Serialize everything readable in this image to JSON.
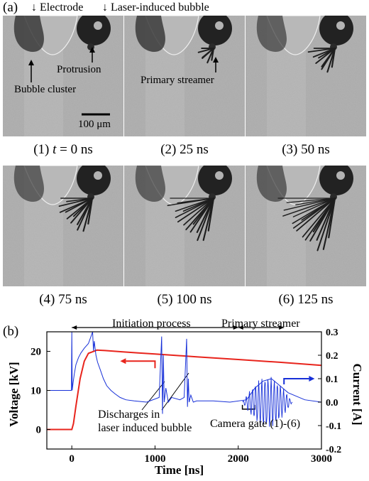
{
  "part_a": {
    "label": "(a)",
    "top_labels": {
      "electrode": "Electrode",
      "bubble": "Laser-induced bubble"
    },
    "annotations": {
      "bubble_cluster": "Bubble cluster",
      "protrusion": "Protrusion",
      "primary_streamer": "Primary streamer",
      "scale_bar": "100 μm"
    },
    "frames": [
      {
        "caption_prefix": "(1) ",
        "caption_var": "t",
        "caption_suffix": " = 0 ns",
        "streamer_level": 0
      },
      {
        "caption": "(2) 25 ns",
        "streamer_level": 1
      },
      {
        "caption": "(3) 50 ns",
        "streamer_level": 2
      },
      {
        "caption": "(4) 75 ns",
        "streamer_level": 3
      },
      {
        "caption": "(5) 100 ns",
        "streamer_level": 4
      },
      {
        "caption": "(6) 125 ns",
        "streamer_level": 5
      }
    ]
  },
  "part_b": {
    "label": "(b)",
    "chart_data": {
      "type": "line",
      "xlabel": "Time [ns]",
      "ylabel_left": "Voltage [kV]",
      "ylabel_right": "Current [A]",
      "xlim": [
        -300,
        3000
      ],
      "ylim_left": [
        -5,
        25
      ],
      "ylim_right": [
        -0.2,
        0.3
      ],
      "xticks": [
        0,
        1000,
        2000,
        3000
      ],
      "yticks_left": [
        0,
        10,
        20
      ],
      "yticks_right": [
        -0.2,
        -0.1,
        0.0,
        0.1,
        0.2,
        0.3
      ],
      "series": [
        {
          "axis": "left",
          "color": "#e8241c",
          "x": [
            -300,
            0,
            20,
            50,
            100,
            150,
            200,
            300,
            400,
            600,
            800,
            1000,
            1500,
            2000,
            2500,
            3000
          ],
          "y": [
            0,
            0,
            1.5,
            6,
            13,
            17.5,
            19.5,
            20.3,
            20.2,
            19.9,
            19.6,
            19.3,
            18.6,
            17.9,
            17.2,
            16.4
          ]
        },
        {
          "axis": "right",
          "color": "#1730d8",
          "x": [
            -300,
            -5,
            0,
            5,
            15,
            30,
            50,
            80,
            110,
            150,
            200,
            230,
            250,
            260,
            270,
            290,
            310,
            340,
            380,
            420,
            470,
            520,
            580,
            650,
            750,
            900,
            1050,
            1080,
            1090,
            1100,
            1110,
            1130,
            1160,
            1200,
            1300,
            1350,
            1380,
            1390,
            1400,
            1410,
            1430,
            1460,
            1500,
            1700,
            1900,
            2100,
            2200,
            2300,
            2400,
            2500,
            2600,
            2800,
            3000
          ],
          "y": [
            0.05,
            0.05,
            0.3,
            0.05,
            0.08,
            0.12,
            0.16,
            0.19,
            0.21,
            0.23,
            0.25,
            0.28,
            0.3,
            0.22,
            0.26,
            0.2,
            0.17,
            0.14,
            0.1,
            0.07,
            0.05,
            0.035,
            0.02,
            0.01,
            0.005,
            0.0,
            0.02,
            0.28,
            -0.05,
            0.2,
            0.0,
            0.06,
            0.0,
            0.02,
            0.01,
            0.02,
            0.27,
            -0.02,
            0.1,
            0.0,
            0.03,
            0.0,
            0.005,
            0.005,
            0.0,
            0.01,
            0.06,
            0.09,
            0.1,
            0.07,
            0.04,
            0.01,
            0.0
          ]
        }
      ],
      "annotations": {
        "initiation": "Initiation process",
        "primary": "Primary streamer",
        "discharges_line1": "Discharges in",
        "discharges_line2": "laser induced bubble",
        "camera_gate": "Camera gate (1)-(6)"
      }
    }
  }
}
